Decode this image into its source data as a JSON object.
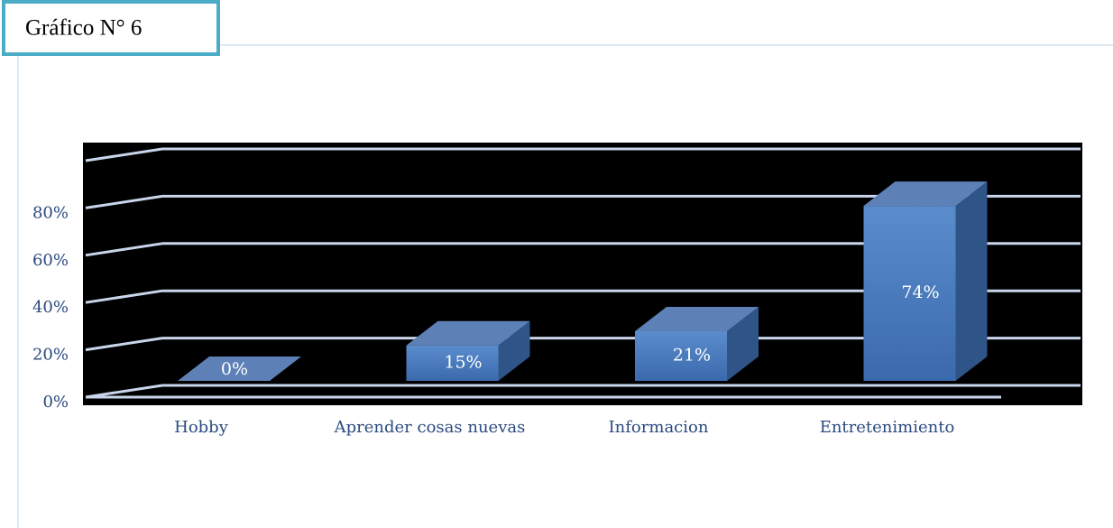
{
  "chart_data": {
    "type": "bar3d",
    "title": "Gráfico N° 6",
    "categories": [
      "Hobby",
      "Aprender cosas nuevas",
      "Informacion",
      "Entretenimiento"
    ],
    "values": [
      0,
      15,
      21,
      74
    ],
    "value_labels": [
      "0%",
      "15%",
      "21%",
      "74%"
    ],
    "color": "#4a7cc0",
    "ylim": [
      0,
      100
    ],
    "yticks": [
      {
        "value": 0,
        "label": "0%"
      },
      {
        "value": 20,
        "label": "20%"
      },
      {
        "value": 40,
        "label": "40%"
      },
      {
        "value": 60,
        "label": "60%"
      },
      {
        "value": 80,
        "label": "80%"
      }
    ],
    "grid": true
  }
}
